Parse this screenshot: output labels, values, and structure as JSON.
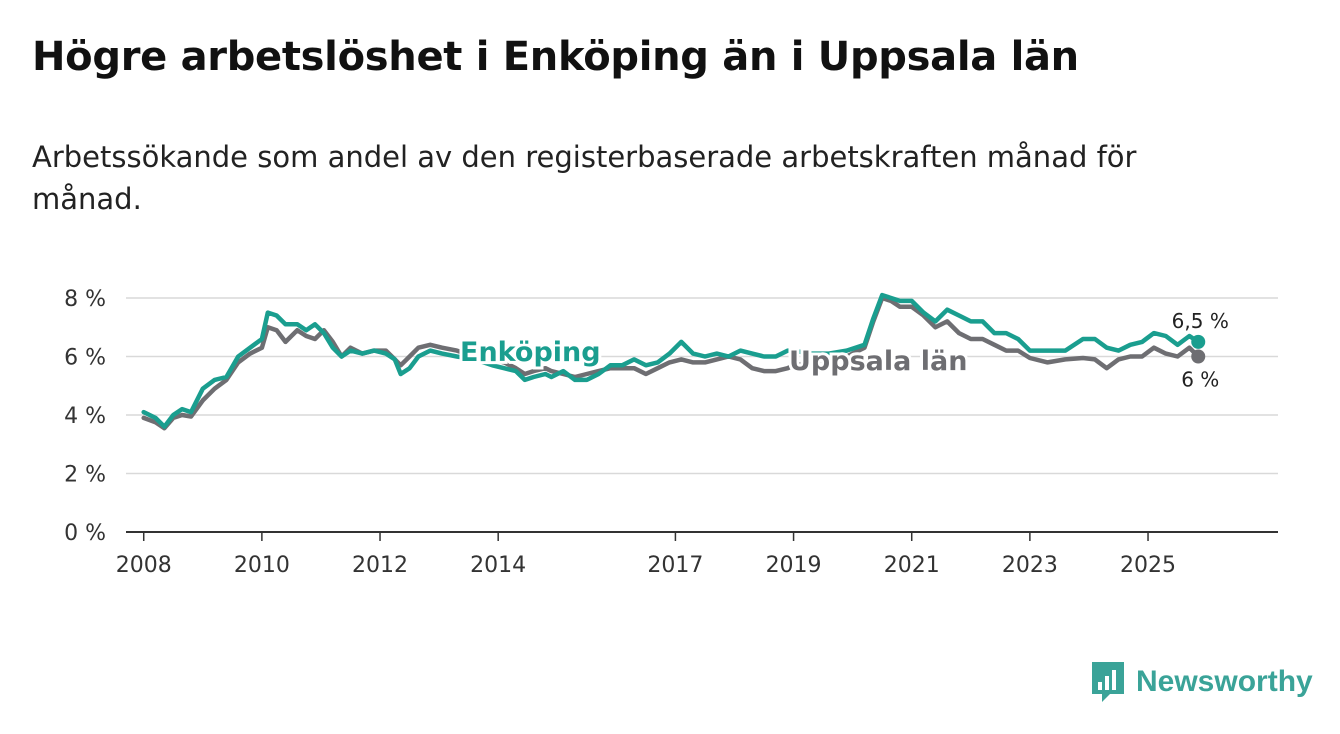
{
  "header": {
    "title": "Högre arbetslöshet i Enköping än i Uppsala län",
    "subtitle": "Arbetssökande som andel av den registerbaserade arbetskraften månad för månad."
  },
  "brand": {
    "name": "Newsworthy",
    "icon": "bar-chart-logo-icon"
  },
  "colors": {
    "enkoping": "#1a9e8f",
    "uppsala": "#6e6e72",
    "grid": "#d9d9d9",
    "axis": "#333333"
  },
  "chart_data": {
    "type": "line",
    "title": "Högre arbetslöshet i Enköping än i Uppsala län",
    "subtitle": "Arbetssökande som andel av den registerbaserade arbetskraften månad för månad.",
    "xlabel": "",
    "ylabel": "",
    "xlim": [
      2007.7,
      2027.2
    ],
    "ylim": [
      0,
      8
    ],
    "y_ticks": [
      0,
      2,
      4,
      6,
      8
    ],
    "y_tick_labels": [
      "0 %",
      "2 %",
      "4 %",
      "6 %",
      "8 %"
    ],
    "x_ticks": [
      2008,
      2010,
      2012,
      2014,
      2017,
      2019,
      2021,
      2023,
      2025
    ],
    "x_tick_labels": [
      "2008",
      "2010",
      "2012",
      "2014",
      "2017",
      "2019",
      "2021",
      "2023",
      "2025"
    ],
    "grid": true,
    "series": [
      {
        "name": "Enköping",
        "color": "#1a9e8f",
        "end_label": "6,5 %",
        "points": [
          [
            2008.0,
            4.1
          ],
          [
            2008.2,
            3.9
          ],
          [
            2008.35,
            3.6
          ],
          [
            2008.5,
            4.0
          ],
          [
            2008.65,
            4.2
          ],
          [
            2008.8,
            4.1
          ],
          [
            2009.0,
            4.9
          ],
          [
            2009.2,
            5.2
          ],
          [
            2009.4,
            5.3
          ],
          [
            2009.6,
            6.0
          ],
          [
            2009.8,
            6.3
          ],
          [
            2010.0,
            6.6
          ],
          [
            2010.1,
            7.5
          ],
          [
            2010.25,
            7.4
          ],
          [
            2010.4,
            7.1
          ],
          [
            2010.6,
            7.1
          ],
          [
            2010.75,
            6.9
          ],
          [
            2010.9,
            7.1
          ],
          [
            2011.05,
            6.8
          ],
          [
            2011.2,
            6.3
          ],
          [
            2011.35,
            6.0
          ],
          [
            2011.5,
            6.2
          ],
          [
            2011.7,
            6.1
          ],
          [
            2011.9,
            6.2
          ],
          [
            2012.1,
            6.1
          ],
          [
            2012.25,
            5.9
          ],
          [
            2012.35,
            5.4
          ],
          [
            2012.5,
            5.6
          ],
          [
            2012.65,
            6.0
          ],
          [
            2012.85,
            6.2
          ],
          [
            2013.05,
            6.1
          ],
          [
            2013.3,
            6.0
          ],
          [
            2013.6,
            5.9
          ],
          [
            2013.9,
            5.7
          ],
          [
            2014.1,
            5.6
          ],
          [
            2014.3,
            5.5
          ],
          [
            2014.45,
            5.2
          ],
          [
            2014.6,
            5.3
          ],
          [
            2014.8,
            5.4
          ],
          [
            2014.9,
            5.3
          ],
          [
            2015.1,
            5.5
          ],
          [
            2015.3,
            5.2
          ],
          [
            2015.5,
            5.2
          ],
          [
            2015.7,
            5.4
          ],
          [
            2015.9,
            5.7
          ],
          [
            2016.1,
            5.7
          ],
          [
            2016.3,
            5.9
          ],
          [
            2016.5,
            5.7
          ],
          [
            2016.7,
            5.8
          ],
          [
            2016.9,
            6.1
          ],
          [
            2017.1,
            6.5
          ],
          [
            2017.3,
            6.1
          ],
          [
            2017.5,
            6.0
          ],
          [
            2017.7,
            6.1
          ],
          [
            2017.9,
            6.0
          ],
          [
            2018.1,
            6.2
          ],
          [
            2018.3,
            6.1
          ],
          [
            2018.5,
            6.0
          ],
          [
            2018.7,
            6.0
          ],
          [
            2018.9,
            6.2
          ],
          [
            2019.0,
            6.2
          ],
          [
            2019.3,
            6.1
          ],
          [
            2019.6,
            6.1
          ],
          [
            2019.9,
            6.2
          ],
          [
            2020.2,
            6.4
          ],
          [
            2020.35,
            7.3
          ],
          [
            2020.5,
            8.1
          ],
          [
            2020.65,
            8.0
          ],
          [
            2020.8,
            7.9
          ],
          [
            2021.0,
            7.9
          ],
          [
            2021.2,
            7.5
          ],
          [
            2021.4,
            7.2
          ],
          [
            2021.6,
            7.6
          ],
          [
            2021.8,
            7.4
          ],
          [
            2022.0,
            7.2
          ],
          [
            2022.2,
            7.2
          ],
          [
            2022.4,
            6.8
          ],
          [
            2022.6,
            6.8
          ],
          [
            2022.8,
            6.6
          ],
          [
            2023.0,
            6.2
          ],
          [
            2023.3,
            6.2
          ],
          [
            2023.6,
            6.2
          ],
          [
            2023.9,
            6.6
          ],
          [
            2024.1,
            6.6
          ],
          [
            2024.3,
            6.3
          ],
          [
            2024.5,
            6.2
          ],
          [
            2024.7,
            6.4
          ],
          [
            2024.9,
            6.5
          ],
          [
            2025.1,
            6.8
          ],
          [
            2025.3,
            6.7
          ],
          [
            2025.5,
            6.4
          ],
          [
            2025.7,
            6.7
          ],
          [
            2025.85,
            6.5
          ]
        ]
      },
      {
        "name": "Uppsala län",
        "color": "#6e6e72",
        "end_label": "6 %",
        "points": [
          [
            2008.0,
            3.9
          ],
          [
            2008.2,
            3.75
          ],
          [
            2008.35,
            3.55
          ],
          [
            2008.5,
            3.9
          ],
          [
            2008.65,
            4.0
          ],
          [
            2008.8,
            3.95
          ],
          [
            2009.0,
            4.5
          ],
          [
            2009.2,
            4.9
          ],
          [
            2009.4,
            5.2
          ],
          [
            2009.6,
            5.8
          ],
          [
            2009.8,
            6.1
          ],
          [
            2010.0,
            6.3
          ],
          [
            2010.1,
            7.0
          ],
          [
            2010.25,
            6.9
          ],
          [
            2010.4,
            6.5
          ],
          [
            2010.6,
            6.9
          ],
          [
            2010.75,
            6.7
          ],
          [
            2010.9,
            6.6
          ],
          [
            2011.05,
            6.9
          ],
          [
            2011.2,
            6.5
          ],
          [
            2011.35,
            6.0
          ],
          [
            2011.5,
            6.3
          ],
          [
            2011.7,
            6.1
          ],
          [
            2011.9,
            6.2
          ],
          [
            2012.1,
            6.2
          ],
          [
            2012.25,
            5.9
          ],
          [
            2012.35,
            5.7
          ],
          [
            2012.5,
            6.0
          ],
          [
            2012.65,
            6.3
          ],
          [
            2012.85,
            6.4
          ],
          [
            2013.05,
            6.3
          ],
          [
            2013.3,
            6.2
          ],
          [
            2013.6,
            6.0
          ],
          [
            2013.9,
            5.9
          ],
          [
            2014.1,
            5.8
          ],
          [
            2014.3,
            5.6
          ],
          [
            2014.45,
            5.4
          ],
          [
            2014.6,
            5.5
          ],
          [
            2014.8,
            5.6
          ],
          [
            2014.9,
            5.5
          ],
          [
            2015.1,
            5.4
          ],
          [
            2015.3,
            5.3
          ],
          [
            2015.5,
            5.4
          ],
          [
            2015.7,
            5.5
          ],
          [
            2015.9,
            5.6
          ],
          [
            2016.1,
            5.6
          ],
          [
            2016.3,
            5.6
          ],
          [
            2016.5,
            5.4
          ],
          [
            2016.7,
            5.6
          ],
          [
            2016.9,
            5.8
          ],
          [
            2017.1,
            5.9
          ],
          [
            2017.3,
            5.8
          ],
          [
            2017.5,
            5.8
          ],
          [
            2017.7,
            5.9
          ],
          [
            2017.9,
            6.0
          ],
          [
            2018.1,
            5.9
          ],
          [
            2018.3,
            5.6
          ],
          [
            2018.5,
            5.5
          ],
          [
            2018.7,
            5.5
          ],
          [
            2018.9,
            5.6
          ],
          [
            2019.0,
            5.7
          ],
          [
            2019.3,
            5.8
          ],
          [
            2019.6,
            5.9
          ],
          [
            2019.9,
            6.0
          ],
          [
            2020.2,
            6.3
          ],
          [
            2020.35,
            7.2
          ],
          [
            2020.5,
            8.0
          ],
          [
            2020.65,
            7.9
          ],
          [
            2020.8,
            7.7
          ],
          [
            2021.0,
            7.7
          ],
          [
            2021.2,
            7.4
          ],
          [
            2021.4,
            7.0
          ],
          [
            2021.6,
            7.2
          ],
          [
            2021.8,
            6.8
          ],
          [
            2022.0,
            6.6
          ],
          [
            2022.2,
            6.6
          ],
          [
            2022.4,
            6.4
          ],
          [
            2022.6,
            6.2
          ],
          [
            2022.8,
            6.2
          ],
          [
            2023.0,
            5.95
          ],
          [
            2023.3,
            5.8
          ],
          [
            2023.6,
            5.9
          ],
          [
            2023.9,
            5.95
          ],
          [
            2024.1,
            5.9
          ],
          [
            2024.3,
            5.6
          ],
          [
            2024.5,
            5.9
          ],
          [
            2024.7,
            6.0
          ],
          [
            2024.9,
            6.0
          ],
          [
            2025.1,
            6.3
          ],
          [
            2025.3,
            6.1
          ],
          [
            2025.5,
            6.0
          ],
          [
            2025.7,
            6.3
          ],
          [
            2025.85,
            6.0
          ]
        ]
      }
    ]
  }
}
